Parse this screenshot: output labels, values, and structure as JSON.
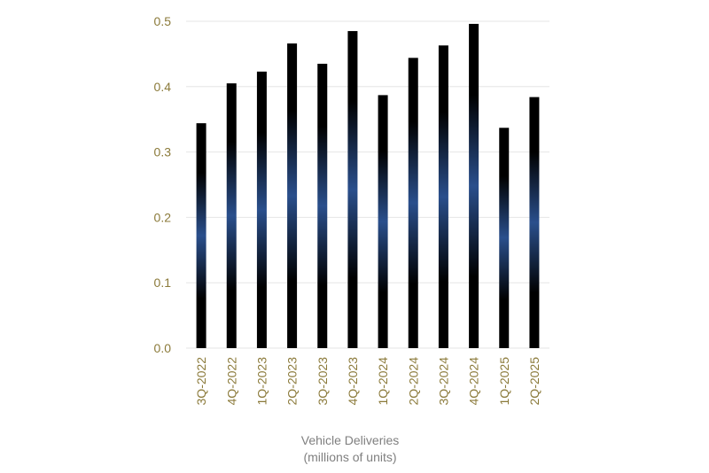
{
  "chart_data": {
    "type": "bar",
    "title": "",
    "categories": [
      "3Q-2022",
      "4Q-2022",
      "1Q-2023",
      "2Q-2023",
      "3Q-2023",
      "4Q-2023",
      "1Q-2024",
      "2Q-2024",
      "3Q-2024",
      "4Q-2024",
      "1Q-2025",
      "2Q-2025"
    ],
    "values": [
      0.344,
      0.405,
      0.423,
      0.466,
      0.435,
      0.485,
      0.387,
      0.444,
      0.463,
      0.496,
      0.337,
      0.384
    ],
    "xlabel": "Vehicle Deliveries",
    "xlabel_sub": "(millions of units)",
    "ylabel": "",
    "ylim": [
      0,
      0.5
    ],
    "yticks": [
      "0.0",
      "0.1",
      "0.2",
      "0.3",
      "0.4",
      "0.5"
    ],
    "grid": true,
    "legend": "none",
    "colors": {
      "bar_edge": "#000000",
      "bar_center": "#2a4f8c",
      "tick_text": "#8b7a3a",
      "caption_text": "#7f7f7f",
      "grid": "#e6e6e6"
    }
  }
}
